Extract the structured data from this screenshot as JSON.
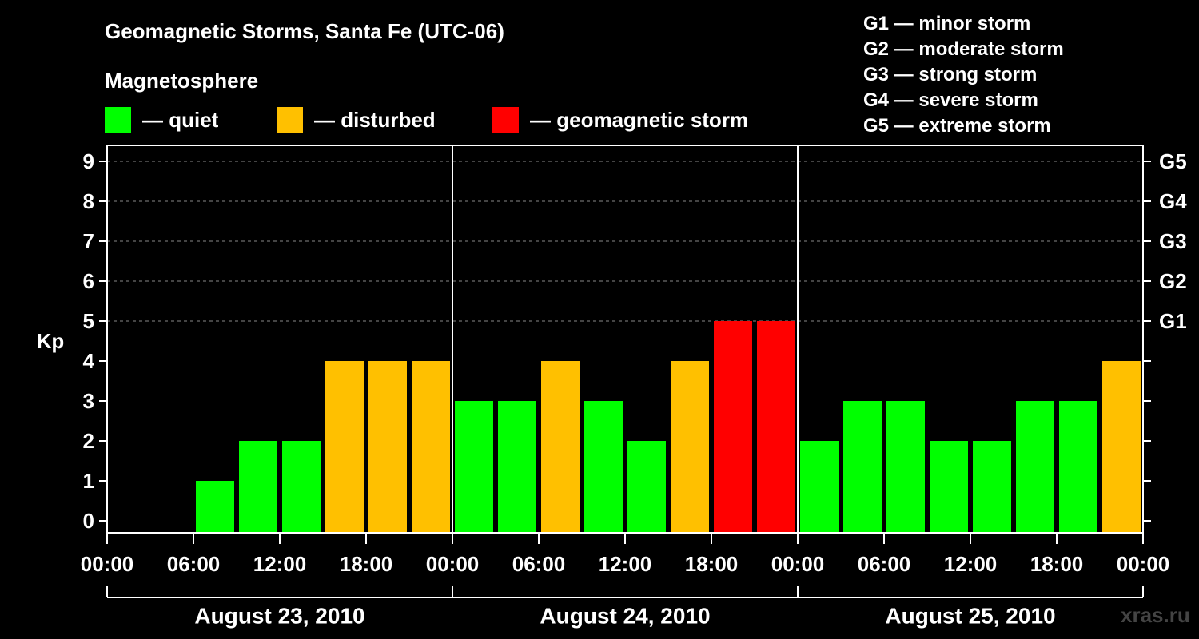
{
  "title": "Geomagnetic Storms, Santa Fe (UTC-06)",
  "section_label": "Magnetosphere",
  "legend": [
    {
      "label": "— quiet",
      "color": "#00ff00"
    },
    {
      "label": "— disturbed",
      "color": "#ffc000"
    },
    {
      "label": "— geomagnetic storm",
      "color": "#ff0000"
    }
  ],
  "storm_scale": [
    "G1 — minor storm",
    "G2 — moderate storm",
    "G3 — strong storm",
    "G4 — severe storm",
    "G5 — extreme storm"
  ],
  "watermark": "xras.ru",
  "chart_data": {
    "type": "bar",
    "ylabel": "Kp",
    "ylim": [
      0,
      9
    ],
    "yticks": [
      0,
      1,
      2,
      3,
      4,
      5,
      6,
      7,
      8,
      9
    ],
    "right_axis_labels": [
      {
        "kp": 5,
        "label": "G1"
      },
      {
        "kp": 6,
        "label": "G2"
      },
      {
        "kp": 7,
        "label": "G3"
      },
      {
        "kp": 8,
        "label": "G4"
      },
      {
        "kp": 9,
        "label": "G5"
      }
    ],
    "xtick_labels": [
      "00:00",
      "06:00",
      "12:00",
      "18:00",
      "00:00",
      "06:00",
      "12:00",
      "18:00",
      "00:00",
      "06:00",
      "12:00",
      "18:00",
      "00:00"
    ],
    "days": [
      "August 23, 2010",
      "August 24, 2010",
      "August 25, 2010"
    ],
    "interval_hours": 3,
    "values": [
      0,
      0,
      1,
      2,
      2,
      4,
      4,
      4,
      3,
      3,
      4,
      3,
      2,
      4,
      5,
      5,
      2,
      3,
      3,
      2,
      2,
      3,
      3,
      4
    ],
    "colors": {
      "quiet": "#00ff00",
      "disturbed": "#ffc000",
      "storm": "#ff0000"
    },
    "thresholds": {
      "disturbed_at": 4,
      "storm_at": 5
    },
    "grid_lines_at": [
      5,
      6,
      7,
      8,
      9
    ]
  }
}
